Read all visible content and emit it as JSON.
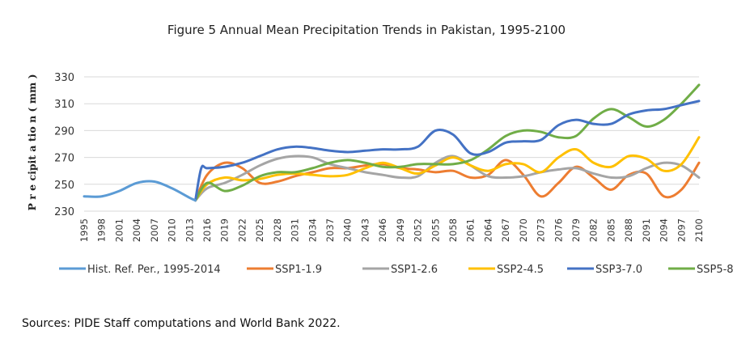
{
  "source_note": "Sources: PIDE Staff computations and World Bank 2022.",
  "chart_data": {
    "type": "line",
    "title": "Figure 5 Annual Mean Precipitation Trends in Pakistan, 1995-2100",
    "xlabel": "",
    "ylabel": "P r e cipit a tio n ( mm )",
    "ylim": [
      230,
      330
    ],
    "yticks": [
      230,
      250,
      270,
      290,
      310,
      330
    ],
    "grid": true,
    "legend_position": "bottom",
    "x_ticks": [
      1995,
      1998,
      2001,
      2004,
      2007,
      2010,
      2013,
      2016,
      2019,
      2022,
      2025,
      2028,
      2031,
      2034,
      2037,
      2040,
      2043,
      2046,
      2049,
      2052,
      2055,
      2058,
      2061,
      2064,
      2067,
      2070,
      2073,
      2076,
      2079,
      2082,
      2085,
      2088,
      2091,
      2094,
      2097,
      2100
    ],
    "series": [
      {
        "name": "Hist. Ref. Per., 1995-2014",
        "color": "#5b9bd5",
        "x": [
          1995,
          1998,
          2001,
          2004,
          2007,
          2010,
          2013,
          2014
        ],
        "values": [
          241,
          241,
          245,
          251,
          252,
          247,
          240,
          238
        ]
      },
      {
        "name": "SSP1-1.9",
        "color": "#ed7d31",
        "x": [
          2014,
          2016,
          2019,
          2022,
          2025,
          2028,
          2031,
          2034,
          2037,
          2040,
          2043,
          2046,
          2049,
          2052,
          2055,
          2058,
          2061,
          2064,
          2067,
          2070,
          2073,
          2076,
          2079,
          2082,
          2085,
          2088,
          2091,
          2094,
          2097,
          2100
        ],
        "values": [
          238,
          257,
          266,
          262,
          251,
          252,
          256,
          259,
          262,
          262,
          264,
          265,
          262,
          261,
          259,
          260,
          255,
          257,
          268,
          257,
          241,
          251,
          263,
          255,
          246,
          257,
          258,
          241,
          246,
          266
        ]
      },
      {
        "name": "SSP1-2.6",
        "color": "#a5a5a5",
        "x": [
          2014,
          2016,
          2019,
          2022,
          2025,
          2028,
          2031,
          2034,
          2037,
          2040,
          2043,
          2046,
          2049,
          2052,
          2055,
          2058,
          2061,
          2064,
          2067,
          2070,
          2073,
          2076,
          2079,
          2082,
          2085,
          2088,
          2091,
          2094,
          2097,
          2100
        ],
        "values": [
          238,
          247,
          251,
          257,
          264,
          269,
          271,
          270,
          265,
          262,
          259,
          257,
          255,
          256,
          266,
          271,
          264,
          256,
          255,
          256,
          259,
          261,
          262,
          258,
          255,
          256,
          262,
          266,
          264,
          255
        ]
      },
      {
        "name": "SSP2-4.5",
        "color": "#ffc000",
        "x": [
          2014,
          2016,
          2019,
          2022,
          2025,
          2028,
          2031,
          2034,
          2037,
          2040,
          2043,
          2046,
          2049,
          2052,
          2055,
          2058,
          2061,
          2064,
          2067,
          2070,
          2073,
          2076,
          2079,
          2082,
          2085,
          2088,
          2091,
          2094,
          2097,
          2100
        ],
        "values": [
          238,
          250,
          255,
          253,
          254,
          257,
          258,
          257,
          256,
          257,
          262,
          266,
          262,
          258,
          264,
          270,
          264,
          260,
          265,
          265,
          259,
          270,
          276,
          266,
          263,
          271,
          269,
          260,
          265,
          285
        ]
      },
      {
        "name": "SSP3-7.0",
        "color": "#4472c4",
        "x": [
          2014,
          2015,
          2016,
          2019,
          2022,
          2025,
          2028,
          2031,
          2034,
          2037,
          2040,
          2043,
          2046,
          2049,
          2052,
          2055,
          2058,
          2061,
          2064,
          2067,
          2070,
          2073,
          2076,
          2079,
          2082,
          2085,
          2088,
          2091,
          2094,
          2097,
          2100
        ],
        "values": [
          238,
          262,
          262,
          263,
          266,
          271,
          276,
          278,
          277,
          275,
          274,
          275,
          276,
          276,
          278,
          290,
          287,
          273,
          274,
          281,
          282,
          283,
          294,
          298,
          295,
          295,
          302,
          305,
          306,
          309,
          312
        ]
      },
      {
        "name": "SSP5-8.5",
        "color": "#70ad47",
        "x": [
          2014,
          2016,
          2019,
          2022,
          2025,
          2028,
          2031,
          2034,
          2037,
          2040,
          2043,
          2046,
          2049,
          2052,
          2055,
          2058,
          2061,
          2064,
          2067,
          2070,
          2073,
          2076,
          2079,
          2082,
          2085,
          2088,
          2091,
          2094,
          2097,
          2100
        ],
        "values": [
          238,
          251,
          245,
          249,
          256,
          259,
          259,
          262,
          266,
          268,
          266,
          263,
          263,
          265,
          265,
          265,
          268,
          276,
          286,
          290,
          289,
          285,
          286,
          299,
          306,
          300,
          293,
          298,
          310,
          324
        ]
      }
    ]
  }
}
